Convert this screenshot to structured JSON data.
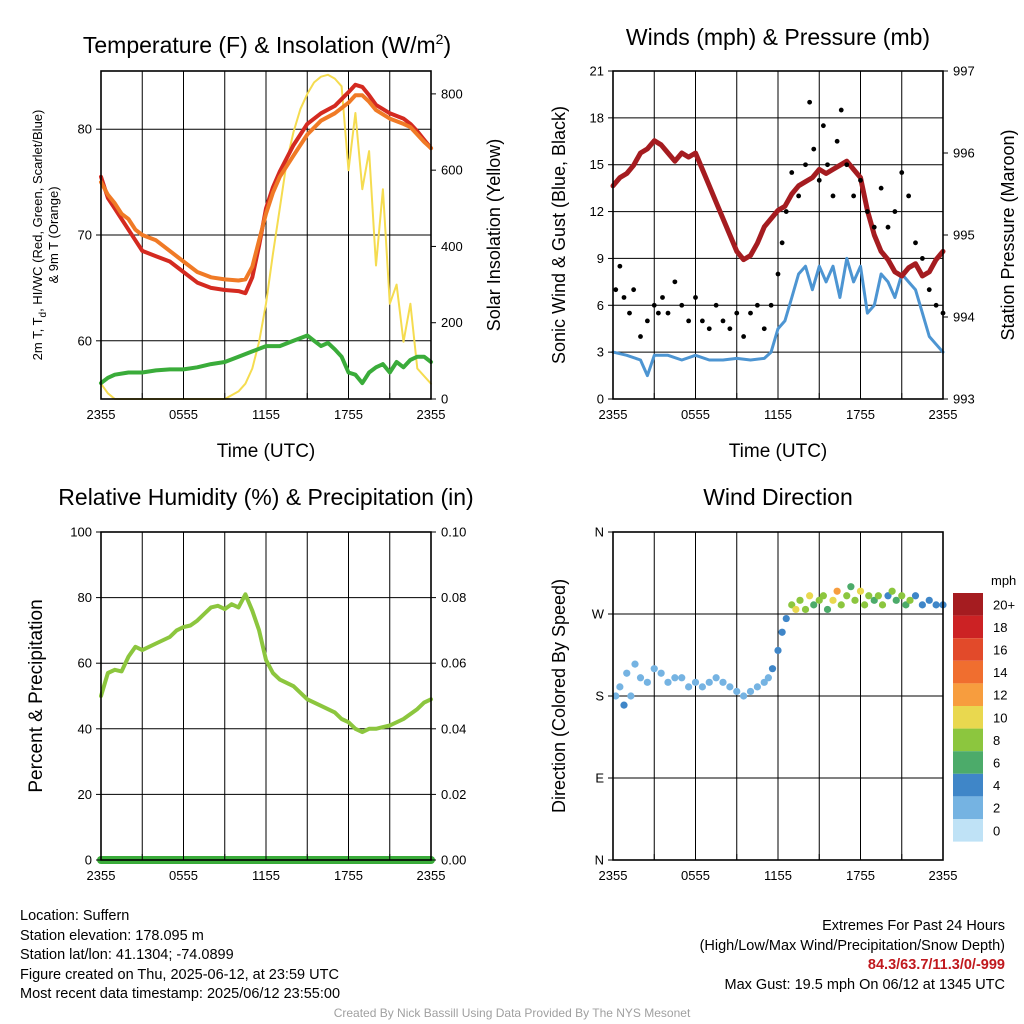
{
  "panels": {
    "temp": {
      "title": "Temperature (F) & Insolation (W/m",
      "title_sup": "2",
      "title_end": ")",
      "ylabel_line1_a": "2m T, T",
      "ylabel_line1_sub": "d",
      "ylabel_line1_b": ", HI/WC (Red, Green, Scarlet/Blue)",
      "ylabel_line2": "& 9m T (Orange)",
      "ylabel_right": "Solar Insolation (Yellow)",
      "xlabel": "Time (UTC)"
    },
    "wind": {
      "title": "Winds (mph) & Pressure (mb)",
      "ylabel_left": "Sonic Wind & Gust (Blue, Black)",
      "ylabel_right": "Station Pressure (Maroon)",
      "xlabel": "Time (UTC)"
    },
    "rh": {
      "title": "Relative Humidity (%) & Precipitation (in)",
      "ylabel_left": "Percent & Precipitation"
    },
    "dir": {
      "title": "Wind Direction",
      "ylabel_left": "Direction (Colored By Speed)"
    }
  },
  "info": {
    "location": "Location: Suffern",
    "elevation": "Station elevation: 178.095 m",
    "latlon": "Station lat/lon: 41.1304; -74.0899",
    "created": "Figure created on Thu, 2025-06-12, at 23:59 UTC",
    "recent": "Most recent data timestamp: 2025/06/12 23:55:00",
    "extremes_title": "Extremes For Past 24 Hours",
    "extremes_subtitle": "(High/Low/Max Wind/Precipitation/Snow Depth)",
    "extremes_values": "84.3/63.7/11.3/0/-999",
    "max_gust": "Max Gust: 19.5 mph On 06/12 at 1345 UTC",
    "credit": "Created By Nick Bassill Using Data Provided By The NYS Mesonet"
  },
  "colors": {
    "temp_red": "#d42a20",
    "temp9m_orange": "#f07a26",
    "dewpoint_green": "#3aac3a",
    "insolation_yellow": "#f5dc50",
    "wind_blue": "#4d95d2",
    "gust_black": "#000000",
    "pressure_maroon": "#a51c20",
    "rh_green": "#8cc63e",
    "precip_green": "#3aac3a"
  },
  "chart_data": [
    {
      "id": "temp",
      "type": "line",
      "x_ticks": [
        "2355",
        "0555",
        "1155",
        "1755",
        "2355"
      ],
      "x_range_hours": [
        0,
        24
      ],
      "ylim": [
        54.5,
        85.5
      ],
      "y_ticks": [
        60,
        70,
        80
      ],
      "ylim_right": [
        0,
        860
      ],
      "y_ticks_right": [
        0,
        200,
        400,
        600,
        800
      ],
      "series": [
        {
          "key": "t2m",
          "color": "#d42a20",
          "axis": "left",
          "width": 4,
          "x": [
            0,
            0.5,
            1,
            1.5,
            2,
            2.5,
            3,
            4,
            5,
            6,
            7,
            8,
            9,
            10,
            10.5,
            11,
            11.5,
            12,
            12.5,
            13,
            14,
            15,
            16,
            17,
            18,
            18.5,
            19,
            19.5,
            20,
            21,
            22,
            22.5,
            23,
            23.5,
            24
          ],
          "y": [
            75.5,
            73.5,
            72.5,
            71.5,
            70.5,
            69.5,
            68.5,
            68,
            67.5,
            66.5,
            65.5,
            65,
            64.8,
            64.7,
            64.5,
            66,
            69,
            72.5,
            74.5,
            76,
            78.5,
            80.5,
            81.5,
            82.2,
            83.5,
            84.2,
            84,
            83.2,
            82.3,
            81.5,
            81,
            80.5,
            79.8,
            79,
            78.2
          ]
        },
        {
          "key": "t9m",
          "color": "#f07a26",
          "axis": "left",
          "width": 4,
          "x": [
            0,
            0.5,
            1,
            1.5,
            2,
            2.5,
            3,
            4,
            5,
            6,
            7,
            8,
            9,
            10,
            10.5,
            11,
            11.5,
            12,
            12.5,
            13,
            14,
            15,
            16,
            17,
            18,
            18.5,
            19,
            19.5,
            20,
            21,
            22,
            22.5,
            23,
            23.5,
            24
          ],
          "y": [
            75,
            73.8,
            73,
            72,
            71.5,
            70.5,
            70,
            69.5,
            68.5,
            67.5,
            66.5,
            66,
            65.8,
            65.7,
            65.8,
            67,
            69.5,
            72,
            74,
            75.5,
            77.5,
            79.5,
            80.8,
            81.5,
            82.5,
            83.2,
            83.2,
            82.6,
            81.8,
            81,
            80.5,
            80.2,
            79.5,
            78.8,
            78.2
          ]
        },
        {
          "key": "dewpoint",
          "color": "#3aac3a",
          "axis": "left",
          "width": 4,
          "x": [
            0,
            0.5,
            1,
            2,
            3,
            4,
            5,
            6,
            7,
            8,
            9,
            10,
            11,
            12,
            13,
            14,
            15,
            15.5,
            16,
            16.5,
            17,
            17.5,
            18,
            18.5,
            19,
            19.5,
            20,
            20.5,
            21,
            21.5,
            22,
            22.5,
            23,
            23.5,
            24
          ],
          "y": [
            56,
            56.5,
            56.8,
            57,
            57,
            57.2,
            57.3,
            57.3,
            57.5,
            57.8,
            58,
            58.5,
            59,
            59.5,
            59.5,
            60,
            60.5,
            60,
            59.5,
            59.8,
            59.2,
            58.5,
            57,
            56.8,
            56,
            57,
            57.5,
            57.8,
            57,
            58,
            57.5,
            58.2,
            58.5,
            58.5,
            58
          ]
        },
        {
          "key": "insolation",
          "color": "#f5dc50",
          "axis": "right",
          "width": 2,
          "x": [
            0,
            0.5,
            1,
            2,
            3,
            4,
            5,
            6,
            7,
            8,
            9,
            9.5,
            10,
            10.5,
            11,
            11.5,
            12,
            12.5,
            13,
            13.5,
            14,
            14.5,
            15,
            15.5,
            16,
            16.5,
            17,
            17.5,
            18,
            18.5,
            19,
            19.5,
            20,
            20.5,
            21,
            21.5,
            22,
            22.5,
            23,
            23.5,
            24
          ],
          "y": [
            40,
            15,
            0,
            0,
            0,
            0,
            0,
            0,
            0,
            0,
            0,
            10,
            20,
            40,
            80,
            150,
            250,
            380,
            500,
            620,
            700,
            760,
            800,
            830,
            845,
            850,
            840,
            820,
            600,
            750,
            550,
            650,
            350,
            550,
            250,
            300,
            150,
            250,
            80,
            60,
            40
          ]
        }
      ]
    },
    {
      "id": "wind",
      "type": "line",
      "x_ticks": [
        "2355",
        "0555",
        "1155",
        "1755",
        "2355"
      ],
      "x_range_hours": [
        0,
        24
      ],
      "ylim": [
        0,
        21
      ],
      "y_ticks": [
        0,
        3,
        6,
        9,
        12,
        15,
        18,
        21
      ],
      "ylim_right": [
        993,
        997
      ],
      "y_ticks_right": [
        993,
        994,
        995,
        996,
        997
      ],
      "series": [
        {
          "key": "sonic_wind",
          "color": "#4d95d2",
          "axis": "left",
          "width": 3,
          "x": [
            0,
            1,
            2,
            2.5,
            3,
            4,
            5,
            6,
            7,
            8,
            9,
            10,
            11,
            11.5,
            12,
            12.5,
            13,
            13.5,
            14,
            14.5,
            15,
            15.5,
            16,
            16.5,
            17,
            17.5,
            18,
            18.5,
            19,
            19.5,
            20,
            20.5,
            21,
            21.5,
            22,
            22.5,
            23,
            23.5,
            24
          ],
          "y": [
            3,
            2.8,
            2.5,
            1.5,
            2.8,
            2.8,
            2.5,
            2.8,
            2.5,
            2.5,
            2.6,
            2.5,
            2.6,
            3,
            4.5,
            5,
            6.5,
            8,
            8.5,
            7,
            8.5,
            7.5,
            8.5,
            6.5,
            9,
            7.5,
            8.5,
            5.5,
            6,
            8,
            7.5,
            6.5,
            8,
            7.5,
            7,
            5.5,
            4,
            3.5,
            3
          ]
        },
        {
          "key": "pressure",
          "color": "#a51c20",
          "axis": "right",
          "width": 5,
          "x": [
            0,
            0.5,
            1,
            1.5,
            2,
            2.5,
            3,
            3.5,
            4,
            4.5,
            5,
            5.5,
            6,
            6.5,
            7,
            7.5,
            8,
            8.5,
            9,
            9.5,
            10,
            10.5,
            11,
            11.5,
            12,
            12.5,
            13,
            13.5,
            14,
            14.5,
            15,
            15.5,
            16,
            16.5,
            17,
            17.5,
            18,
            18.5,
            19,
            19.5,
            20,
            20.5,
            21,
            21.5,
            22,
            22.5,
            23,
            23.5,
            24
          ],
          "y": [
            995.6,
            995.7,
            995.75,
            995.85,
            996.0,
            996.05,
            996.15,
            996.1,
            996.0,
            995.9,
            996.0,
            995.95,
            996.0,
            995.8,
            995.6,
            995.4,
            995.2,
            995.0,
            994.8,
            994.7,
            994.75,
            994.9,
            995.1,
            995.2,
            995.3,
            995.35,
            995.5,
            995.6,
            995.65,
            995.7,
            995.8,
            995.75,
            995.8,
            995.85,
            995.9,
            995.8,
            995.7,
            995.3,
            995.0,
            994.8,
            994.7,
            994.55,
            994.5,
            994.6,
            994.65,
            994.5,
            994.55,
            994.7,
            994.8
          ]
        },
        {
          "key": "gust",
          "color": "#000000",
          "axis": "left",
          "width": 0,
          "mode": "scatter",
          "x": [
            0.2,
            0.5,
            0.8,
            1.2,
            1.5,
            2,
            2.5,
            3,
            3.3,
            3.6,
            4,
            4.5,
            5,
            5.5,
            6,
            6.5,
            7,
            7.5,
            8,
            8.5,
            9,
            9.5,
            10,
            10.5,
            11,
            11.5,
            12,
            12.3,
            12.6,
            13,
            13.5,
            14,
            14.3,
            14.6,
            15,
            15.3,
            15.6,
            16,
            16.3,
            16.6,
            17,
            17.5,
            18,
            18.5,
            19,
            19.5,
            20,
            20.5,
            21,
            21.5,
            22,
            22.5,
            23,
            23.5,
            24
          ],
          "y": [
            7,
            8.5,
            6.5,
            5.5,
            7,
            4,
            5,
            6,
            5.5,
            6.5,
            5.5,
            7.5,
            6,
            5,
            6.5,
            5,
            4.5,
            6,
            5,
            4.5,
            5.5,
            4,
            5.5,
            6,
            4.5,
            6,
            8,
            10,
            12,
            14.5,
            13,
            15,
            19,
            16,
            14,
            17.5,
            15,
            13,
            16.5,
            18.5,
            15,
            13,
            14,
            12,
            11,
            13.5,
            11,
            12,
            14.5,
            13,
            10,
            9,
            7,
            6,
            5.5
          ]
        }
      ]
    },
    {
      "id": "rh",
      "type": "line",
      "x_ticks": [
        "2355",
        "0555",
        "1155",
        "1755",
        "2355"
      ],
      "x_range_hours": [
        0,
        24
      ],
      "ylim": [
        0,
        100
      ],
      "y_ticks": [
        0,
        20,
        40,
        60,
        80,
        100
      ],
      "ylim_right": [
        0,
        0.1
      ],
      "y_ticks_right": [
        "0.00",
        "0.02",
        "0.04",
        "0.06",
        "0.08",
        "0.10"
      ],
      "series": [
        {
          "key": "rh",
          "color": "#8cc63e",
          "axis": "left",
          "width": 4,
          "x": [
            0,
            0.5,
            1,
            1.5,
            2,
            2.5,
            3,
            4,
            5,
            5.5,
            6,
            6.5,
            7,
            7.5,
            8,
            8.5,
            9,
            9.5,
            10,
            10.5,
            11,
            11.5,
            12,
            12.5,
            13,
            14,
            15,
            16,
            17,
            17.5,
            18,
            18.5,
            19,
            19.5,
            20,
            21,
            22,
            23,
            23.5,
            24
          ],
          "y": [
            50,
            57,
            58,
            57.5,
            62,
            65,
            64,
            66,
            68,
            70,
            71,
            71.5,
            73,
            75,
            77,
            77.5,
            76.5,
            78,
            77,
            81,
            76,
            70,
            61,
            57,
            55,
            53,
            49,
            47,
            45,
            43,
            42,
            40,
            39,
            40,
            40,
            41,
            43,
            46,
            48,
            49
          ]
        },
        {
          "key": "precip",
          "color": "#3aac3a",
          "axis": "right",
          "width": 8,
          "x": [
            0,
            24
          ],
          "y": [
            0,
            0
          ]
        }
      ]
    },
    {
      "id": "dir",
      "type": "scatter",
      "x_ticks": [
        "2355",
        "0555",
        "1155",
        "1755",
        "2355"
      ],
      "x_range_hours": [
        0,
        24
      ],
      "y_ticks": [
        "N",
        "E",
        "S",
        "W",
        "N"
      ],
      "ylim_deg": [
        0,
        360
      ],
      "legend_title": "mph",
      "legend_labels": [
        "20+",
        "18",
        "16",
        "14",
        "12",
        "10",
        "8",
        "6",
        "4",
        "2",
        "0"
      ],
      "legend_colors": [
        "#a51c20",
        "#cc2224",
        "#e24a2a",
        "#f06e2f",
        "#f79d3e",
        "#e9d84f",
        "#8cc63e",
        "#4cab6a",
        "#3f86c8",
        "#75b3e2",
        "#bfe2f6"
      ],
      "points_x": [
        0.2,
        0.5,
        0.8,
        1,
        1.3,
        1.6,
        2,
        2.5,
        3,
        3.5,
        4,
        4.5,
        5,
        5.5,
        6,
        6.5,
        7,
        7.5,
        8,
        8.5,
        9,
        9.5,
        10,
        10.5,
        11,
        11.3,
        11.6,
        12,
        12.3,
        12.6,
        13,
        13.3,
        13.6,
        14,
        14.3,
        14.6,
        15,
        15.3,
        15.6,
        16,
        16.3,
        16.6,
        17,
        17.3,
        17.6,
        18,
        18.3,
        18.6,
        19,
        19.3,
        19.6,
        20,
        20.3,
        20.6,
        21,
        21.3,
        21.6,
        22,
        22.5,
        23,
        23.5,
        24
      ],
      "points_deg": [
        180,
        190,
        170,
        205,
        180,
        215,
        200,
        195,
        210,
        205,
        195,
        200,
        200,
        190,
        195,
        190,
        195,
        200,
        195,
        190,
        185,
        180,
        185,
        190,
        195,
        200,
        210,
        230,
        250,
        265,
        280,
        275,
        285,
        275,
        290,
        280,
        285,
        290,
        275,
        285,
        295,
        280,
        290,
        300,
        285,
        295,
        280,
        290,
        285,
        290,
        280,
        290,
        295,
        285,
        290,
        280,
        285,
        290,
        280,
        285,
        280,
        280
      ],
      "points_speed": [
        2,
        1,
        3,
        1,
        2,
        1,
        2,
        2,
        2,
        2,
        2,
        2,
        2,
        2,
        2,
        2,
        2,
        2,
        2,
        2,
        2,
        2,
        2,
        2,
        2,
        2,
        3,
        3,
        4,
        4,
        7,
        9,
        7,
        8,
        10,
        6,
        7,
        8,
        6,
        9,
        11,
        8,
        7,
        6,
        8,
        9,
        7,
        8,
        5,
        7,
        8,
        4,
        7,
        6,
        8,
        5,
        7,
        4,
        4,
        3,
        4,
        4
      ]
    }
  ]
}
